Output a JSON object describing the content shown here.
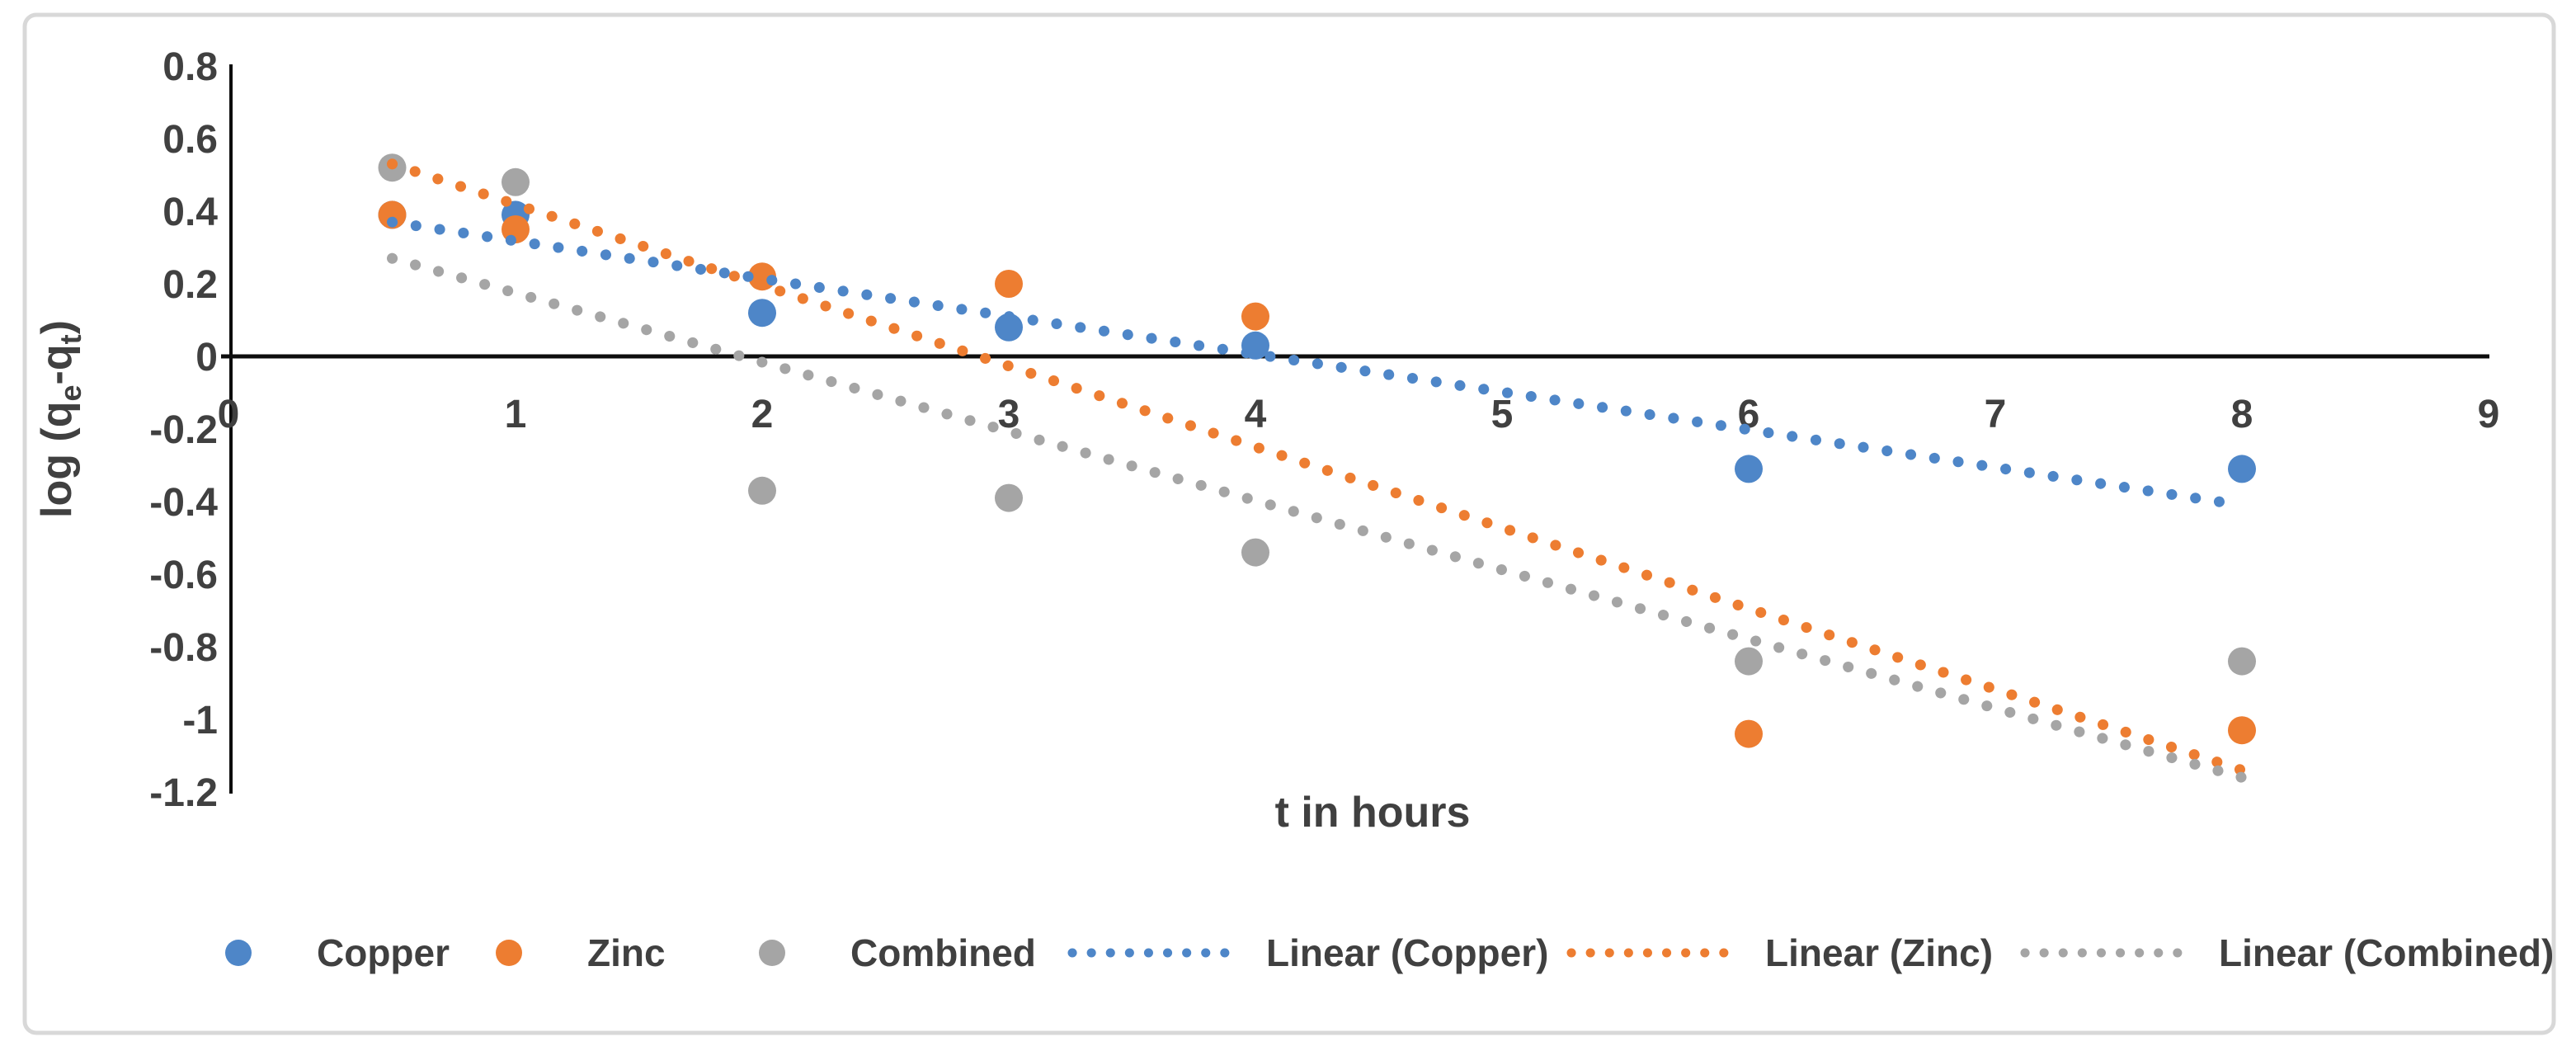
{
  "chart_data": {
    "type": "scatter",
    "title": "",
    "xlabel": "t in hours",
    "ylabel": "log (qe-qt)",
    "ylabel_rich": {
      "pre": "log (q",
      "sub1": "e",
      "mid": "-q",
      "sub2": "t",
      "post": ")"
    },
    "xlim": [
      0,
      9
    ],
    "ylim": [
      -1.2,
      0.8
    ],
    "grid": false,
    "legend_position": "bottom",
    "x_axis": {
      "ticks": [
        {
          "value": 0,
          "label": "0"
        },
        {
          "value": 1,
          "label": "1"
        },
        {
          "value": 2,
          "label": "2"
        },
        {
          "value": 3,
          "label": "3"
        },
        {
          "value": 4,
          "label": "4"
        },
        {
          "value": 5,
          "label": "5"
        },
        {
          "value": 6,
          "label": "6"
        },
        {
          "value": 7,
          "label": "7"
        },
        {
          "value": 8,
          "label": "8"
        },
        {
          "value": 9,
          "label": "9"
        }
      ]
    },
    "y_axis": {
      "ticks": [
        {
          "value": 0.8,
          "label": "0.8"
        },
        {
          "value": 0.6,
          "label": "0.6"
        },
        {
          "value": 0.4,
          "label": "0.4"
        },
        {
          "value": 0.2,
          "label": "0.2"
        },
        {
          "value": 0,
          "label": "0"
        },
        {
          "value": -0.2,
          "label": "-0.2"
        },
        {
          "value": -0.4,
          "label": "-0.4"
        },
        {
          "value": -0.6,
          "label": "-0.6"
        },
        {
          "value": -0.8,
          "label": "-0.8"
        },
        {
          "value": -1,
          "label": "-1"
        },
        {
          "value": -1.2,
          "label": "-1.2"
        }
      ]
    },
    "series": [
      {
        "name": "Copper",
        "color": "#4E86C8",
        "marker": "circle",
        "points": [
          [
            0.5,
            0.39
          ],
          [
            1,
            0.39
          ],
          [
            2,
            0.12
          ],
          [
            3,
            0.08
          ],
          [
            4,
            0.03
          ],
          [
            6,
            -0.31
          ],
          [
            8,
            -0.31
          ]
        ]
      },
      {
        "name": "Zinc",
        "color": "#ED7D31",
        "marker": "circle",
        "points": [
          [
            0.5,
            0.39
          ],
          [
            1,
            0.35
          ],
          [
            2,
            0.22
          ],
          [
            3,
            0.2
          ],
          [
            4,
            0.11
          ],
          [
            6,
            -1.04
          ],
          [
            8,
            -1.03
          ]
        ]
      },
      {
        "name": "Combined",
        "color": "#A5A5A5",
        "marker": "circle",
        "points": [
          [
            0.5,
            0.52
          ],
          [
            1,
            0.48
          ],
          [
            2,
            -0.37
          ],
          [
            3,
            -0.39
          ],
          [
            4,
            -0.54
          ],
          [
            6,
            -0.84
          ],
          [
            8,
            -0.84
          ]
        ]
      }
    ],
    "trendlines": [
      {
        "label": "Linear (Copper)",
        "series": "Copper",
        "style": "dotted",
        "start": [
          0.5,
          0.37
        ],
        "end": [
          8,
          -0.41
        ]
      },
      {
        "label": "Linear (Zinc)",
        "series": "Zinc",
        "style": "dotted",
        "start": [
          0.5,
          0.53
        ],
        "end": [
          8,
          -1.14
        ]
      },
      {
        "label": "Linear (Combined)",
        "series": "Combined",
        "style": "dotted",
        "start": [
          0.5,
          0.27
        ],
        "end": [
          8,
          -1.16
        ]
      }
    ]
  },
  "legend": {
    "items": [
      {
        "label": "Copper",
        "marker": "dot",
        "series": "Copper"
      },
      {
        "label": "Zinc",
        "marker": "dot",
        "series": "Zinc"
      },
      {
        "label": "Combined",
        "marker": "dot",
        "series": "Combined"
      },
      {
        "label": "Linear (Copper)",
        "marker": "dotted-line",
        "series": "Copper"
      },
      {
        "label": "Linear (Zinc)",
        "marker": "dotted-line",
        "series": "Zinc"
      },
      {
        "label": "Linear (Combined)",
        "marker": "dotted-line",
        "series": "Combined"
      }
    ]
  },
  "colors": {
    "axis_line": "#0d0d0d",
    "tick_text": "#404040",
    "legend_text": "#404040",
    "border": "#d8d8d8",
    "background": "#ffffff"
  }
}
